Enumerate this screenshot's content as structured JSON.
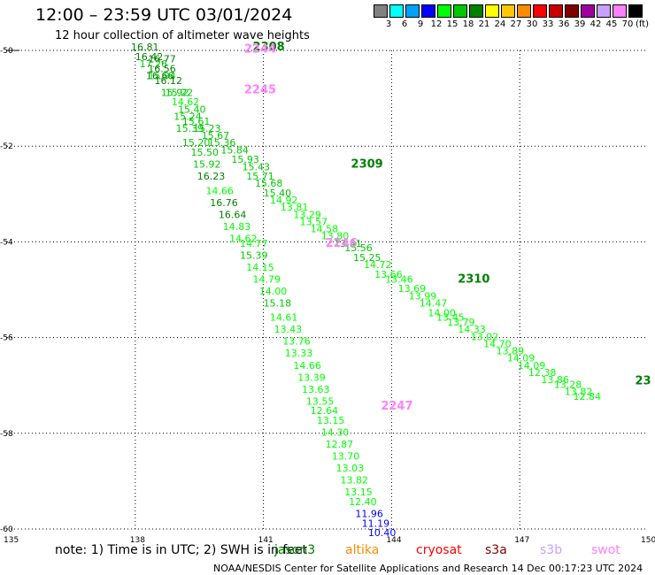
{
  "header": {
    "title": "12:00 – 23:59 UTC 03/01/2024",
    "subtitle": "12 hour collection of altimeter wave heights"
  },
  "legend": {
    "units": "(ft)",
    "steps": [
      {
        "label": "3",
        "color": "#808080"
      },
      {
        "label": "6",
        "color": "#00ffff"
      },
      {
        "label": "9",
        "color": "#00a0ff"
      },
      {
        "label": "12",
        "color": "#0000ff"
      },
      {
        "label": "15",
        "color": "#00ff00"
      },
      {
        "label": "18",
        "color": "#00c800"
      },
      {
        "label": "21",
        "color": "#008000"
      },
      {
        "label": "24",
        "color": "#ffff00"
      },
      {
        "label": "27",
        "color": "#ffc800"
      },
      {
        "label": "30",
        "color": "#ff8c00"
      },
      {
        "label": "33",
        "color": "#ff0000"
      },
      {
        "label": "36",
        "color": "#c80000"
      },
      {
        "label": "39",
        "color": "#800000"
      },
      {
        "label": "42",
        "color": "#a000a0"
      },
      {
        "label": "45",
        "color": "#c8a0ff"
      },
      {
        "label": "70",
        "color": "#ff80ff"
      },
      {
        "label": "",
        "color": "#000000"
      }
    ]
  },
  "axes": {
    "lon_ticks": [
      "135",
      "138",
      "141",
      "144",
      "147",
      "150"
    ],
    "lat_ticks": [
      "-50",
      "-52",
      "-54",
      "-56",
      "-58",
      "-60"
    ]
  },
  "track_labels": [
    {
      "text": "2308",
      "lon": 140.75,
      "lat": -50.0,
      "color": "#008000"
    },
    {
      "text": "2244",
      "lon": 140.55,
      "lat": -50.05,
      "color": "#ff80ff"
    },
    {
      "text": "2245",
      "lon": 140.55,
      "lat": -50.9,
      "color": "#ff80ff"
    },
    {
      "text": "2309",
      "lon": 143.05,
      "lat": -52.45,
      "color": "#008000"
    },
    {
      "text": "2246",
      "lon": 142.45,
      "lat": -54.1,
      "color": "#ff80ff"
    },
    {
      "text": "2310",
      "lon": 145.55,
      "lat": -54.85,
      "color": "#008000"
    },
    {
      "text": "2247",
      "lon": 143.75,
      "lat": -57.5,
      "color": "#ff80ff"
    },
    {
      "text": "23",
      "lon": 149.7,
      "lat": -56.98,
      "color": "#008000"
    }
  ],
  "tracks": [
    {
      "name": "pass-2308",
      "points": [
        {
          "value": "16.81",
          "lon": 137.9,
          "lat": -50.0,
          "color": "#008000"
        },
        {
          "value": "16.42",
          "lon": 138.0,
          "lat": -50.2,
          "color": "#008000"
        },
        {
          "value": "16.77",
          "lon": 138.3,
          "lat": -50.25,
          "color": "#008000"
        },
        {
          "value": "17.26",
          "lon": 138.1,
          "lat": -50.35,
          "color": "#00c800"
        },
        {
          "value": "16.56",
          "lon": 138.3,
          "lat": -50.45,
          "color": "#008000"
        },
        {
          "value": "16.66",
          "lon": 138.25,
          "lat": -50.6,
          "color": "#008000"
        },
        {
          "value": "15.94",
          "lon": 138.3,
          "lat": -50.6,
          "color": "#00c800"
        },
        {
          "value": "16.12",
          "lon": 138.45,
          "lat": -50.7,
          "color": "#008000"
        },
        {
          "value": "15.92",
          "lon": 138.6,
          "lat": -50.95,
          "color": "#00c800"
        },
        {
          "value": "15.22",
          "lon": 138.7,
          "lat": -50.95,
          "color": "#00c800"
        },
        {
          "value": "14.62",
          "lon": 138.85,
          "lat": -51.15,
          "color": "#00ff00"
        },
        {
          "value": "15.40",
          "lon": 139.0,
          "lat": -51.3,
          "color": "#00c800"
        },
        {
          "value": "15.24",
          "lon": 138.9,
          "lat": -51.45,
          "color": "#00c800"
        },
        {
          "value": "15.61",
          "lon": 139.1,
          "lat": -51.55,
          "color": "#00c800"
        },
        {
          "value": "15.39",
          "lon": 138.95,
          "lat": -51.7,
          "color": "#00c800"
        },
        {
          "value": "15.23",
          "lon": 139.35,
          "lat": -51.7,
          "color": "#00c800"
        },
        {
          "value": "15.67",
          "lon": 139.55,
          "lat": -51.85,
          "color": "#00c800"
        },
        {
          "value": "15.20",
          "lon": 139.1,
          "lat": -52.0,
          "color": "#00c800"
        },
        {
          "value": "15.36",
          "lon": 139.7,
          "lat": -52.0,
          "color": "#00c800"
        },
        {
          "value": "15.50",
          "lon": 139.3,
          "lat": -52.2,
          "color": "#00c800"
        },
        {
          "value": "15.84",
          "lon": 140.0,
          "lat": -52.15,
          "color": "#00c800"
        },
        {
          "value": "15.92",
          "lon": 139.35,
          "lat": -52.45,
          "color": "#00c800"
        },
        {
          "value": "15.93",
          "lon": 140.25,
          "lat": -52.35,
          "color": "#00c800"
        },
        {
          "value": "15.43",
          "lon": 140.5,
          "lat": -52.5,
          "color": "#00c800"
        },
        {
          "value": "16.23",
          "lon": 139.45,
          "lat": -52.7,
          "color": "#008000"
        },
        {
          "value": "15.71",
          "lon": 140.6,
          "lat": -52.7,
          "color": "#00c800"
        },
        {
          "value": "15.68",
          "lon": 140.8,
          "lat": -52.85,
          "color": "#00c800"
        },
        {
          "value": "14.66",
          "lon": 139.65,
          "lat": -53.0,
          "color": "#00ff00"
        },
        {
          "value": "15.40",
          "lon": 141.0,
          "lat": -53.05,
          "color": "#00c800"
        },
        {
          "value": "16.76",
          "lon": 139.75,
          "lat": -53.25,
          "color": "#008000"
        },
        {
          "value": "14.92",
          "lon": 141.15,
          "lat": -53.2,
          "color": "#00ff00"
        },
        {
          "value": "13.81",
          "lon": 141.4,
          "lat": -53.35,
          "color": "#00ff00"
        },
        {
          "value": "16.64",
          "lon": 139.95,
          "lat": -53.5,
          "color": "#008000"
        },
        {
          "value": "13.29",
          "lon": 141.7,
          "lat": -53.5,
          "color": "#00ff00"
        },
        {
          "value": "13.57",
          "lon": 141.85,
          "lat": -53.65,
          "color": "#00ff00"
        },
        {
          "value": "14.83",
          "lon": 140.05,
          "lat": -53.75,
          "color": "#00ff00"
        },
        {
          "value": "14.58",
          "lon": 142.1,
          "lat": -53.8,
          "color": "#00ff00"
        },
        {
          "value": "14.62",
          "lon": 140.2,
          "lat": -54.0,
          "color": "#00ff00"
        },
        {
          "value": "13.80",
          "lon": 142.35,
          "lat": -53.95,
          "color": "#00ff00"
        },
        {
          "value": "13.81",
          "lon": 142.65,
          "lat": -54.1,
          "color": "#00c800"
        },
        {
          "value": "14.77",
          "lon": 140.45,
          "lat": -54.1,
          "color": "#00ff00"
        },
        {
          "value": "15.56",
          "lon": 142.9,
          "lat": -54.2,
          "color": "#00c800"
        },
        {
          "value": "15.39",
          "lon": 140.45,
          "lat": -54.35,
          "color": "#00c800"
        },
        {
          "value": "15.25",
          "lon": 143.1,
          "lat": -54.4,
          "color": "#00c800"
        },
        {
          "value": "14.15",
          "lon": 140.6,
          "lat": -54.6,
          "color": "#00ff00"
        },
        {
          "value": "14.72",
          "lon": 143.35,
          "lat": -54.55,
          "color": "#00ff00"
        },
        {
          "value": "13.66",
          "lon": 143.6,
          "lat": -54.75,
          "color": "#00ff00"
        },
        {
          "value": "14.79",
          "lon": 140.75,
          "lat": -54.85,
          "color": "#00ff00"
        },
        {
          "value": "13.46",
          "lon": 143.85,
          "lat": -54.85,
          "color": "#00ff00"
        },
        {
          "value": "13.69",
          "lon": 144.15,
          "lat": -55.05,
          "color": "#00ff00"
        },
        {
          "value": "14.00",
          "lon": 140.9,
          "lat": -55.1,
          "color": "#00ff00"
        },
        {
          "value": "13.99",
          "lon": 144.4,
          "lat": -55.2,
          "color": "#00ff00"
        },
        {
          "value": "15.18",
          "lon": 141.0,
          "lat": -55.35,
          "color": "#00c800"
        },
        {
          "value": "14.47",
          "lon": 144.65,
          "lat": -55.35,
          "color": "#00ff00"
        },
        {
          "value": "14.00",
          "lon": 144.85,
          "lat": -55.55,
          "color": "#00ff00"
        },
        {
          "value": "14.61",
          "lon": 141.15,
          "lat": -55.65,
          "color": "#00ff00"
        },
        {
          "value": "13.45",
          "lon": 145.05,
          "lat": -55.65,
          "color": "#00ff00"
        },
        {
          "value": "13.79",
          "lon": 145.3,
          "lat": -55.75,
          "color": "#00ff00"
        },
        {
          "value": "13.43",
          "lon": 141.25,
          "lat": -55.9,
          "color": "#00ff00"
        },
        {
          "value": "14.33",
          "lon": 145.55,
          "lat": -55.9,
          "color": "#00ff00"
        },
        {
          "value": "13.02",
          "lon": 145.85,
          "lat": -56.05,
          "color": "#00ff00"
        },
        {
          "value": "13.76",
          "lon": 141.45,
          "lat": -56.15,
          "color": "#00ff00"
        },
        {
          "value": "14.70",
          "lon": 146.15,
          "lat": -56.2,
          "color": "#00ff00"
        },
        {
          "value": "13.89",
          "lon": 146.45,
          "lat": -56.35,
          "color": "#00ff00"
        },
        {
          "value": "13.33",
          "lon": 141.5,
          "lat": -56.4,
          "color": "#00ff00"
        },
        {
          "value": "14.09",
          "lon": 146.7,
          "lat": -56.5,
          "color": "#00ff00"
        },
        {
          "value": "14.09",
          "lon": 146.95,
          "lat": -56.65,
          "color": "#00ff00"
        },
        {
          "value": "14.66",
          "lon": 141.7,
          "lat": -56.65,
          "color": "#00ff00"
        },
        {
          "value": "12.38",
          "lon": 147.2,
          "lat": -56.8,
          "color": "#00ff00"
        },
        {
          "value": "13.39",
          "lon": 141.8,
          "lat": -56.9,
          "color": "#00ff00"
        },
        {
          "value": "13.86",
          "lon": 147.5,
          "lat": -56.95,
          "color": "#00ff00"
        },
        {
          "value": "13.28",
          "lon": 147.8,
          "lat": -57.05,
          "color": "#00ff00"
        },
        {
          "value": "13.63",
          "lon": 141.9,
          "lat": -57.15,
          "color": "#00ff00"
        },
        {
          "value": "13.82",
          "lon": 148.05,
          "lat": -57.2,
          "color": "#00ff00"
        },
        {
          "value": "12.84",
          "lon": 148.25,
          "lat": -57.3,
          "color": "#00ff00"
        }
      ]
    },
    {
      "name": "pass-2247",
      "points": [
        {
          "value": "13.55",
          "lon": 142.0,
          "lat": -57.4,
          "color": "#00ff00"
        },
        {
          "value": "12.64",
          "lon": 142.1,
          "lat": -57.6,
          "color": "#00ff00"
        },
        {
          "value": "13.15",
          "lon": 142.25,
          "lat": -57.8,
          "color": "#00ff00"
        },
        {
          "value": "14.30",
          "lon": 142.35,
          "lat": -58.05,
          "color": "#00ff00"
        },
        {
          "value": "12.87",
          "lon": 142.45,
          "lat": -58.3,
          "color": "#00ff00"
        },
        {
          "value": "13.70",
          "lon": 142.6,
          "lat": -58.55,
          "color": "#00ff00"
        },
        {
          "value": "13.03",
          "lon": 142.7,
          "lat": -58.8,
          "color": "#00ff00"
        },
        {
          "value": "13.82",
          "lon": 142.8,
          "lat": -59.05,
          "color": "#00ff00"
        },
        {
          "value": "13.15",
          "lon": 142.9,
          "lat": -59.3,
          "color": "#00ff00"
        },
        {
          "value": "12.40",
          "lon": 143.0,
          "lat": -59.5,
          "color": "#00ff00"
        },
        {
          "value": "11.96",
          "lon": 143.15,
          "lat": -59.75,
          "color": "#0000ff"
        },
        {
          "value": "11.19",
          "lon": 143.3,
          "lat": -59.95,
          "color": "#0000ff"
        },
        {
          "value": "10.40",
          "lon": 143.45,
          "lat": -60.15,
          "color": "#0000ff"
        }
      ]
    }
  ],
  "note": {
    "prefix": "note: 1) Time is in UTC; 2) SWH is in feet",
    "satellites": [
      {
        "name": "jason3",
        "color": "#008000"
      },
      {
        "name": "altika",
        "color": "#ff8c00"
      },
      {
        "name": "cryosat",
        "color": "#ff0000"
      },
      {
        "name": "s3a",
        "color": "#800000"
      },
      {
        "name": "s3b",
        "color": "#c8a0ff"
      },
      {
        "name": "swot",
        "color": "#ff80ff"
      }
    ]
  },
  "footer": "NOAA/NESDIS Center for Satellite Applications and Research   14 Dec 00:17:23 UTC 2024"
}
